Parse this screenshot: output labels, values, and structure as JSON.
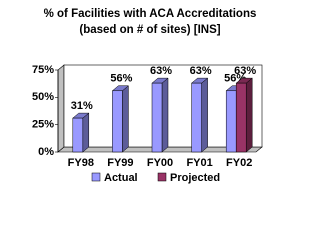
{
  "chart_data": {
    "type": "bar",
    "title": "%  of Facilities with ACA Accreditations",
    "subtitle": "(based on # of sites) [INS]",
    "categories": [
      "FY98",
      "FY99",
      "FY00",
      "FY01",
      "FY02"
    ],
    "series": [
      {
        "name": "Actual",
        "color": "#9999ff",
        "values": [
          31,
          56,
          63,
          63,
          56
        ],
        "value_labels": [
          "31%",
          "56%",
          "63%",
          "63%",
          "56%"
        ]
      },
      {
        "name": "Projected",
        "color": "#993366",
        "values": [
          null,
          null,
          null,
          null,
          63
        ],
        "value_labels": [
          null,
          null,
          null,
          null,
          "63%"
        ]
      }
    ],
    "ylim": [
      0,
      75
    ],
    "yticks": [
      {
        "value": 0,
        "label": "0%"
      },
      {
        "value": 25,
        "label": "25%"
      },
      {
        "value": 50,
        "label": "50%"
      },
      {
        "value": 75,
        "label": "75%"
      }
    ],
    "grid": false,
    "legend": "bottom"
  }
}
